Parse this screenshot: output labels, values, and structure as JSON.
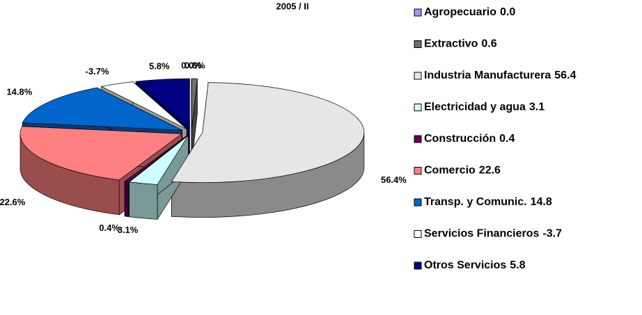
{
  "chart_data": {
    "type": "pie3d",
    "title": "2005 / II",
    "categories": [
      "Agropecuario",
      "Extractivo",
      "Industria Manufacturera",
      "Electricidad y agua",
      "Construcción",
      "Comercio",
      "Transp. y Comunic.",
      "Servicios Financieros",
      "Otros Servicios"
    ],
    "values": [
      0.0,
      0.6,
      56.4,
      3.1,
      0.4,
      22.6,
      14.8,
      -3.7,
      5.8
    ],
    "value_labels": [
      "0.0%",
      "0.6%",
      "56.4%",
      "3.1%",
      "0.4%",
      "22.6%",
      "14.8%",
      "-3.7%",
      "5.8%"
    ],
    "legend_value_labels": [
      "0.0",
      "0.6",
      "56.4",
      "3.1",
      "0.4",
      "22.6",
      "14.8",
      "-3.7",
      "5.8"
    ],
    "colors": [
      "#9999ff",
      "#707070",
      "#e6e6e6",
      "#ccffff",
      "#660066",
      "#ff8080",
      "#0066cc",
      "#ffffff",
      "#000080"
    ]
  }
}
